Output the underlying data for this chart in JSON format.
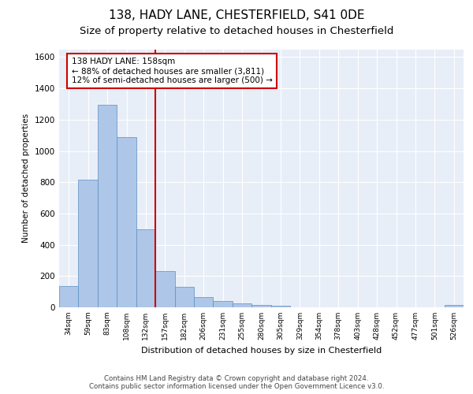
{
  "title1": "138, HADY LANE, CHESTERFIELD, S41 0DE",
  "title2": "Size of property relative to detached houses in Chesterfield",
  "xlabel": "Distribution of detached houses by size in Chesterfield",
  "ylabel": "Number of detached properties",
  "footer1": "Contains HM Land Registry data © Crown copyright and database right 2024.",
  "footer2": "Contains public sector information licensed under the Open Government Licence v3.0.",
  "categories": [
    "34sqm",
    "59sqm",
    "83sqm",
    "108sqm",
    "132sqm",
    "157sqm",
    "182sqm",
    "206sqm",
    "231sqm",
    "255sqm",
    "280sqm",
    "305sqm",
    "329sqm",
    "354sqm",
    "378sqm",
    "403sqm",
    "428sqm",
    "452sqm",
    "477sqm",
    "501sqm",
    "526sqm"
  ],
  "values": [
    138,
    814,
    1295,
    1090,
    497,
    230,
    132,
    65,
    40,
    27,
    14,
    11,
    2,
    0,
    0,
    0,
    2,
    0,
    0,
    0,
    14
  ],
  "bar_color": "#aec6e8",
  "bar_edge_color": "#5a8fc2",
  "annotation_line1": "138 HADY LANE: 158sqm",
  "annotation_line2": "← 88% of detached houses are smaller (3,811)",
  "annotation_line3": "12% of semi-detached houses are larger (500) →",
  "vline_color": "#cc0000",
  "annotation_box_color": "#cc0000",
  "annotation_text_fontsize": 7.5,
  "ylim": [
    0,
    1650
  ],
  "yticks": [
    0,
    200,
    400,
    600,
    800,
    1000,
    1200,
    1400,
    1600
  ],
  "background_color": "#e8eef8",
  "grid_color": "#ffffff",
  "title1_fontsize": 11,
  "title2_fontsize": 9.5,
  "footer_fontsize": 6.2
}
